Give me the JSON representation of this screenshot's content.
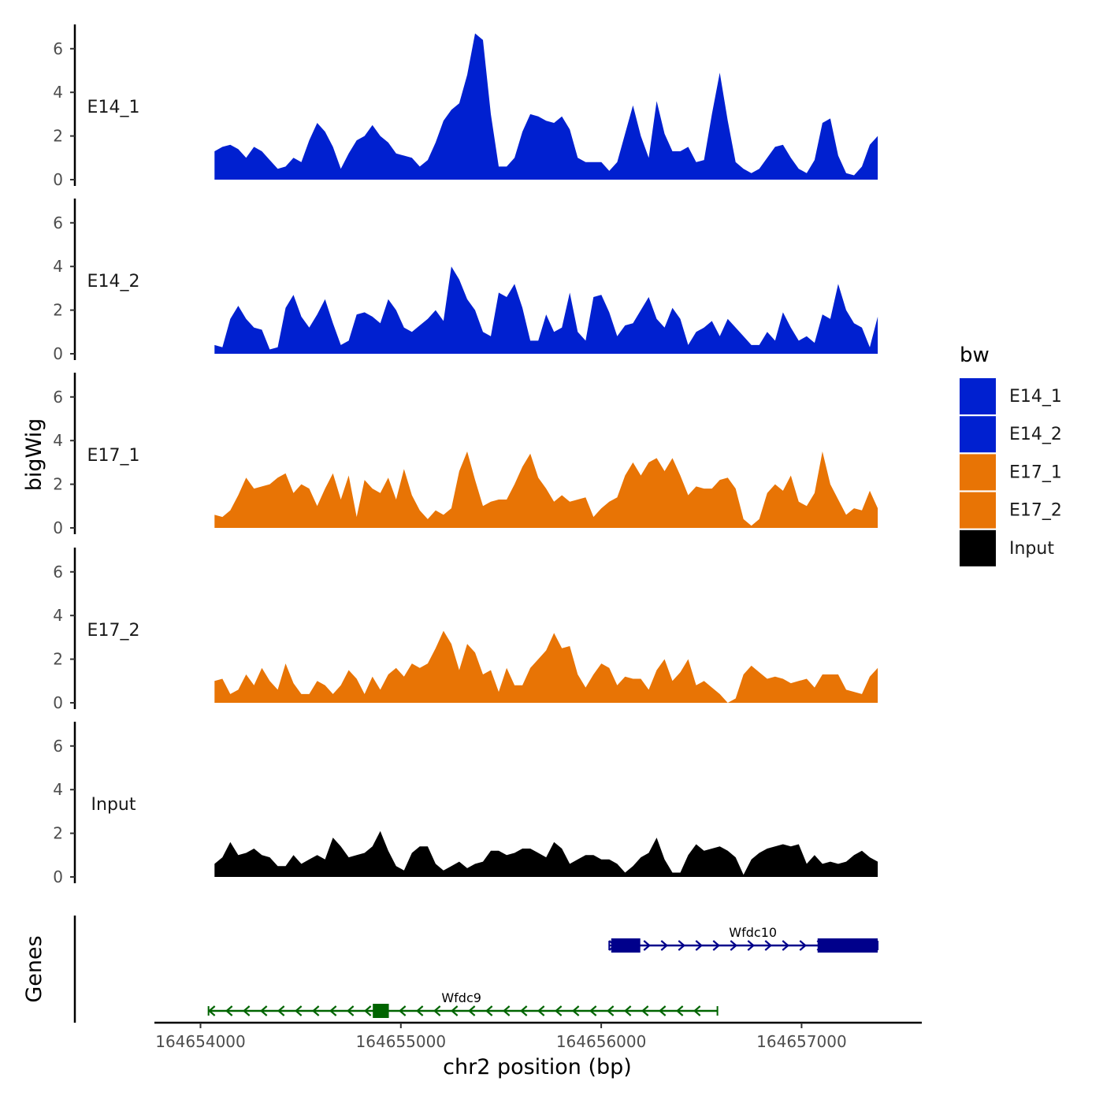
{
  "chart_data": {
    "type": "area",
    "title": "",
    "ylabel": "bigWig",
    "xlabel": "chr2 position (bp)",
    "genes_axis_label": "Genes",
    "ylim": [
      0,
      7
    ],
    "y_ticks": [
      0,
      2,
      4,
      6
    ],
    "y_tick_labels": [
      "0",
      "2",
      "4",
      "6"
    ],
    "xlim": [
      164653770,
      164657600
    ],
    "x_ticks": [
      164654000,
      164655000,
      164656000,
      164657000
    ],
    "x_tick_labels": [
      "164654000",
      "164655000",
      "164656000",
      "164657000"
    ],
    "legend": {
      "title": "bw",
      "position": "right",
      "entries": [
        {
          "label": "E14_1",
          "color": "#0020D0"
        },
        {
          "label": "E14_2",
          "color": "#0020D0"
        },
        {
          "label": "E17_1",
          "color": "#E87405"
        },
        {
          "label": "E17_2",
          "color": "#E87405"
        },
        {
          "label": "Input",
          "color": "#000000"
        }
      ]
    },
    "x_start": 164654070,
    "x_end": 164657380,
    "series": [
      {
        "name": "E14_1",
        "color": "#0020D0",
        "values": [
          1.3,
          1.5,
          1.6,
          1.4,
          1.0,
          1.5,
          1.3,
          0.9,
          0.5,
          0.6,
          1.0,
          0.8,
          1.8,
          2.6,
          2.2,
          1.5,
          0.5,
          1.2,
          1.8,
          2.0,
          2.5,
          2.0,
          1.7,
          1.2,
          1.1,
          1.0,
          0.6,
          0.9,
          1.7,
          2.7,
          3.2,
          3.5,
          4.8,
          6.7,
          6.4,
          3.0,
          0.6,
          0.6,
          1.0,
          2.2,
          3.0,
          2.9,
          2.7,
          2.6,
          2.9,
          2.3,
          1.0,
          0.8,
          0.8,
          0.8,
          0.4,
          0.8,
          2.1,
          3.4,
          2.0,
          1.0,
          3.6,
          2.1,
          1.3,
          1.3,
          1.5,
          0.8,
          0.9,
          3.0,
          4.9,
          2.7,
          0.8,
          0.5,
          0.3,
          0.5,
          1.0,
          1.5,
          1.6,
          1.0,
          0.5,
          0.3,
          0.9,
          2.6,
          2.8,
          1.1,
          0.3,
          0.2,
          0.6,
          1.6,
          2.0
        ]
      },
      {
        "name": "E14_2",
        "color": "#0020D0",
        "values": [
          0.4,
          0.3,
          1.6,
          2.2,
          1.6,
          1.2,
          1.1,
          0.2,
          0.3,
          2.1,
          2.7,
          1.7,
          1.2,
          1.8,
          2.5,
          1.4,
          0.4,
          0.6,
          1.8,
          1.9,
          1.7,
          1.4,
          2.5,
          2.0,
          1.2,
          1.0,
          1.3,
          1.6,
          2.0,
          1.5,
          4.0,
          3.4,
          2.5,
          2.0,
          1.0,
          0.8,
          2.8,
          2.6,
          3.2,
          2.1,
          0.6,
          0.6,
          1.8,
          1.0,
          1.2,
          2.8,
          1.0,
          0.6,
          2.6,
          2.7,
          1.9,
          0.8,
          1.3,
          1.4,
          2.0,
          2.6,
          1.6,
          1.2,
          2.1,
          1.6,
          0.4,
          1.0,
          1.2,
          1.5,
          0.8,
          1.6,
          1.2,
          0.8,
          0.4,
          0.4,
          1.0,
          0.6,
          1.9,
          1.2,
          0.6,
          0.8,
          0.5,
          1.8,
          1.6,
          3.2,
          2.0,
          1.4,
          1.2,
          0.3,
          1.7
        ]
      },
      {
        "name": "E17_1",
        "color": "#E87405",
        "values": [
          0.6,
          0.5,
          0.8,
          1.5,
          2.3,
          1.8,
          1.9,
          2.0,
          2.3,
          2.5,
          1.6,
          2.0,
          1.8,
          1.0,
          1.8,
          2.5,
          1.3,
          2.4,
          0.5,
          2.2,
          1.8,
          1.6,
          2.3,
          1.3,
          2.7,
          1.5,
          0.8,
          0.4,
          0.8,
          0.6,
          0.9,
          2.6,
          3.5,
          2.2,
          1.0,
          1.2,
          1.3,
          1.3,
          2.0,
          2.8,
          3.4,
          2.3,
          1.8,
          1.2,
          1.5,
          1.2,
          1.3,
          1.4,
          0.5,
          0.9,
          1.2,
          1.4,
          2.4,
          3.0,
          2.4,
          3.0,
          3.2,
          2.6,
          3.2,
          2.4,
          1.5,
          1.9,
          1.8,
          1.8,
          2.2,
          2.3,
          1.8,
          0.4,
          0.1,
          0.4,
          1.6,
          2.0,
          1.7,
          2.4,
          1.2,
          1.0,
          1.6,
          3.5,
          2.0,
          1.3,
          0.6,
          0.9,
          0.8,
          1.7,
          0.9
        ]
      },
      {
        "name": "E17_2",
        "color": "#E87405",
        "values": [
          1.0,
          1.1,
          0.4,
          0.6,
          1.3,
          0.8,
          1.6,
          1.0,
          0.6,
          1.8,
          0.9,
          0.4,
          0.4,
          1.0,
          0.8,
          0.4,
          0.8,
          1.5,
          1.1,
          0.4,
          1.2,
          0.6,
          1.3,
          1.6,
          1.2,
          1.8,
          1.6,
          1.8,
          2.5,
          3.3,
          2.7,
          1.5,
          2.7,
          2.3,
          1.3,
          1.5,
          0.5,
          1.6,
          0.8,
          0.8,
          1.6,
          2.0,
          2.4,
          3.2,
          2.5,
          2.6,
          1.3,
          0.7,
          1.3,
          1.8,
          1.6,
          0.8,
          1.2,
          1.1,
          1.1,
          0.6,
          1.5,
          2.0,
          1.0,
          1.4,
          2.0,
          0.8,
          1.0,
          0.7,
          0.4,
          0.0,
          0.2,
          1.3,
          1.7,
          1.4,
          1.1,
          1.2,
          1.1,
          0.9,
          1.0,
          1.1,
          0.7,
          1.3,
          1.3,
          1.3,
          0.6,
          0.5,
          0.4,
          1.2,
          1.6
        ]
      },
      {
        "name": "Input",
        "color": "#000000",
        "values": [
          0.6,
          0.9,
          1.6,
          1.0,
          1.1,
          1.3,
          1.0,
          0.9,
          0.5,
          0.5,
          1.0,
          0.6,
          0.8,
          1.0,
          0.8,
          1.8,
          1.4,
          0.9,
          1.0,
          1.1,
          1.4,
          2.1,
          1.2,
          0.5,
          0.3,
          1.1,
          1.4,
          1.4,
          0.6,
          0.3,
          0.5,
          0.7,
          0.4,
          0.6,
          0.7,
          1.2,
          1.2,
          1.0,
          1.1,
          1.3,
          1.3,
          1.1,
          0.9,
          1.6,
          1.3,
          0.6,
          0.8,
          1.0,
          1.0,
          0.8,
          0.8,
          0.6,
          0.2,
          0.5,
          0.9,
          1.1,
          1.8,
          0.8,
          0.2,
          0.2,
          1.0,
          1.5,
          1.2,
          1.3,
          1.4,
          1.2,
          0.9,
          0.1,
          0.8,
          1.1,
          1.3,
          1.4,
          1.5,
          1.4,
          1.5,
          0.6,
          1.0,
          0.6,
          0.7,
          0.6,
          0.7,
          1.0,
          1.2,
          0.9,
          0.7
        ]
      }
    ],
    "genes": [
      {
        "name": "Wfdc10",
        "strand": "+",
        "color": "#00008B",
        "start": 164656040,
        "end": 164657380,
        "exons": [
          [
            164656050,
            164656195
          ],
          [
            164657080,
            164657380
          ]
        ]
      },
      {
        "name": "Wfdc9",
        "strand": "-",
        "color": "#006400",
        "start": 164654040,
        "end": 164656580,
        "exons": [
          [
            164654860,
            164654940
          ]
        ]
      }
    ]
  }
}
